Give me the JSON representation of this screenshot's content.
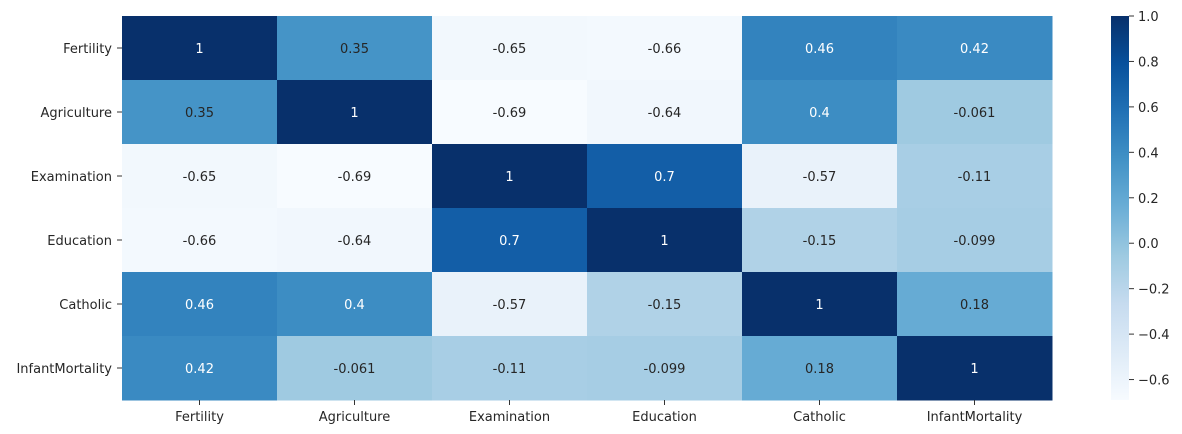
{
  "chart_data": {
    "type": "heatmap",
    "title": "",
    "xlabel": "",
    "ylabel": "",
    "x_categories": [
      "Fertility",
      "Agriculture",
      "Examination",
      "Education",
      "Catholic",
      "InfantMortality"
    ],
    "y_categories": [
      "Fertility",
      "Agriculture",
      "Examination",
      "Education",
      "Catholic",
      "InfantMortality"
    ],
    "values": [
      [
        1,
        0.35,
        -0.65,
        -0.66,
        0.46,
        0.42
      ],
      [
        0.35,
        1,
        -0.69,
        -0.64,
        0.4,
        -0.061
      ],
      [
        -0.65,
        -0.69,
        1,
        0.7,
        -0.57,
        -0.11
      ],
      [
        -0.66,
        -0.64,
        0.7,
        1,
        -0.15,
        -0.099
      ],
      [
        0.46,
        0.4,
        -0.57,
        -0.15,
        1,
        0.18
      ],
      [
        0.42,
        -0.061,
        -0.11,
        -0.099,
        0.18,
        1
      ]
    ],
    "cell_labels": [
      [
        "1",
        "0.35",
        "-0.65",
        "-0.66",
        "0.46",
        "0.42"
      ],
      [
        "0.35",
        "1",
        "-0.69",
        "-0.64",
        "0.4",
        "-0.061"
      ],
      [
        "-0.65",
        "-0.69",
        "1",
        "0.7",
        "-0.57",
        "-0.11"
      ],
      [
        "-0.66",
        "-0.64",
        "0.7",
        "1",
        "-0.15",
        "-0.099"
      ],
      [
        "0.46",
        "0.4",
        "-0.57",
        "-0.15",
        "1",
        "0.18"
      ],
      [
        "0.42",
        "-0.061",
        "-0.11",
        "-0.099",
        "0.18",
        "1"
      ]
    ],
    "colormap": "Blues",
    "color_range": [
      -0.69,
      1
    ],
    "colorbar_ticks": [
      1.0,
      0.8,
      0.6,
      0.4,
      0.2,
      0.0,
      -0.2,
      -0.4,
      -0.6
    ],
    "colorbar_tick_labels": [
      "1.0",
      "0.8",
      "0.6",
      "0.4",
      "0.2",
      "0.0",
      "−0.2",
      "−0.4",
      "−0.6"
    ],
    "colorbar_placement": "right",
    "grid": false
  }
}
